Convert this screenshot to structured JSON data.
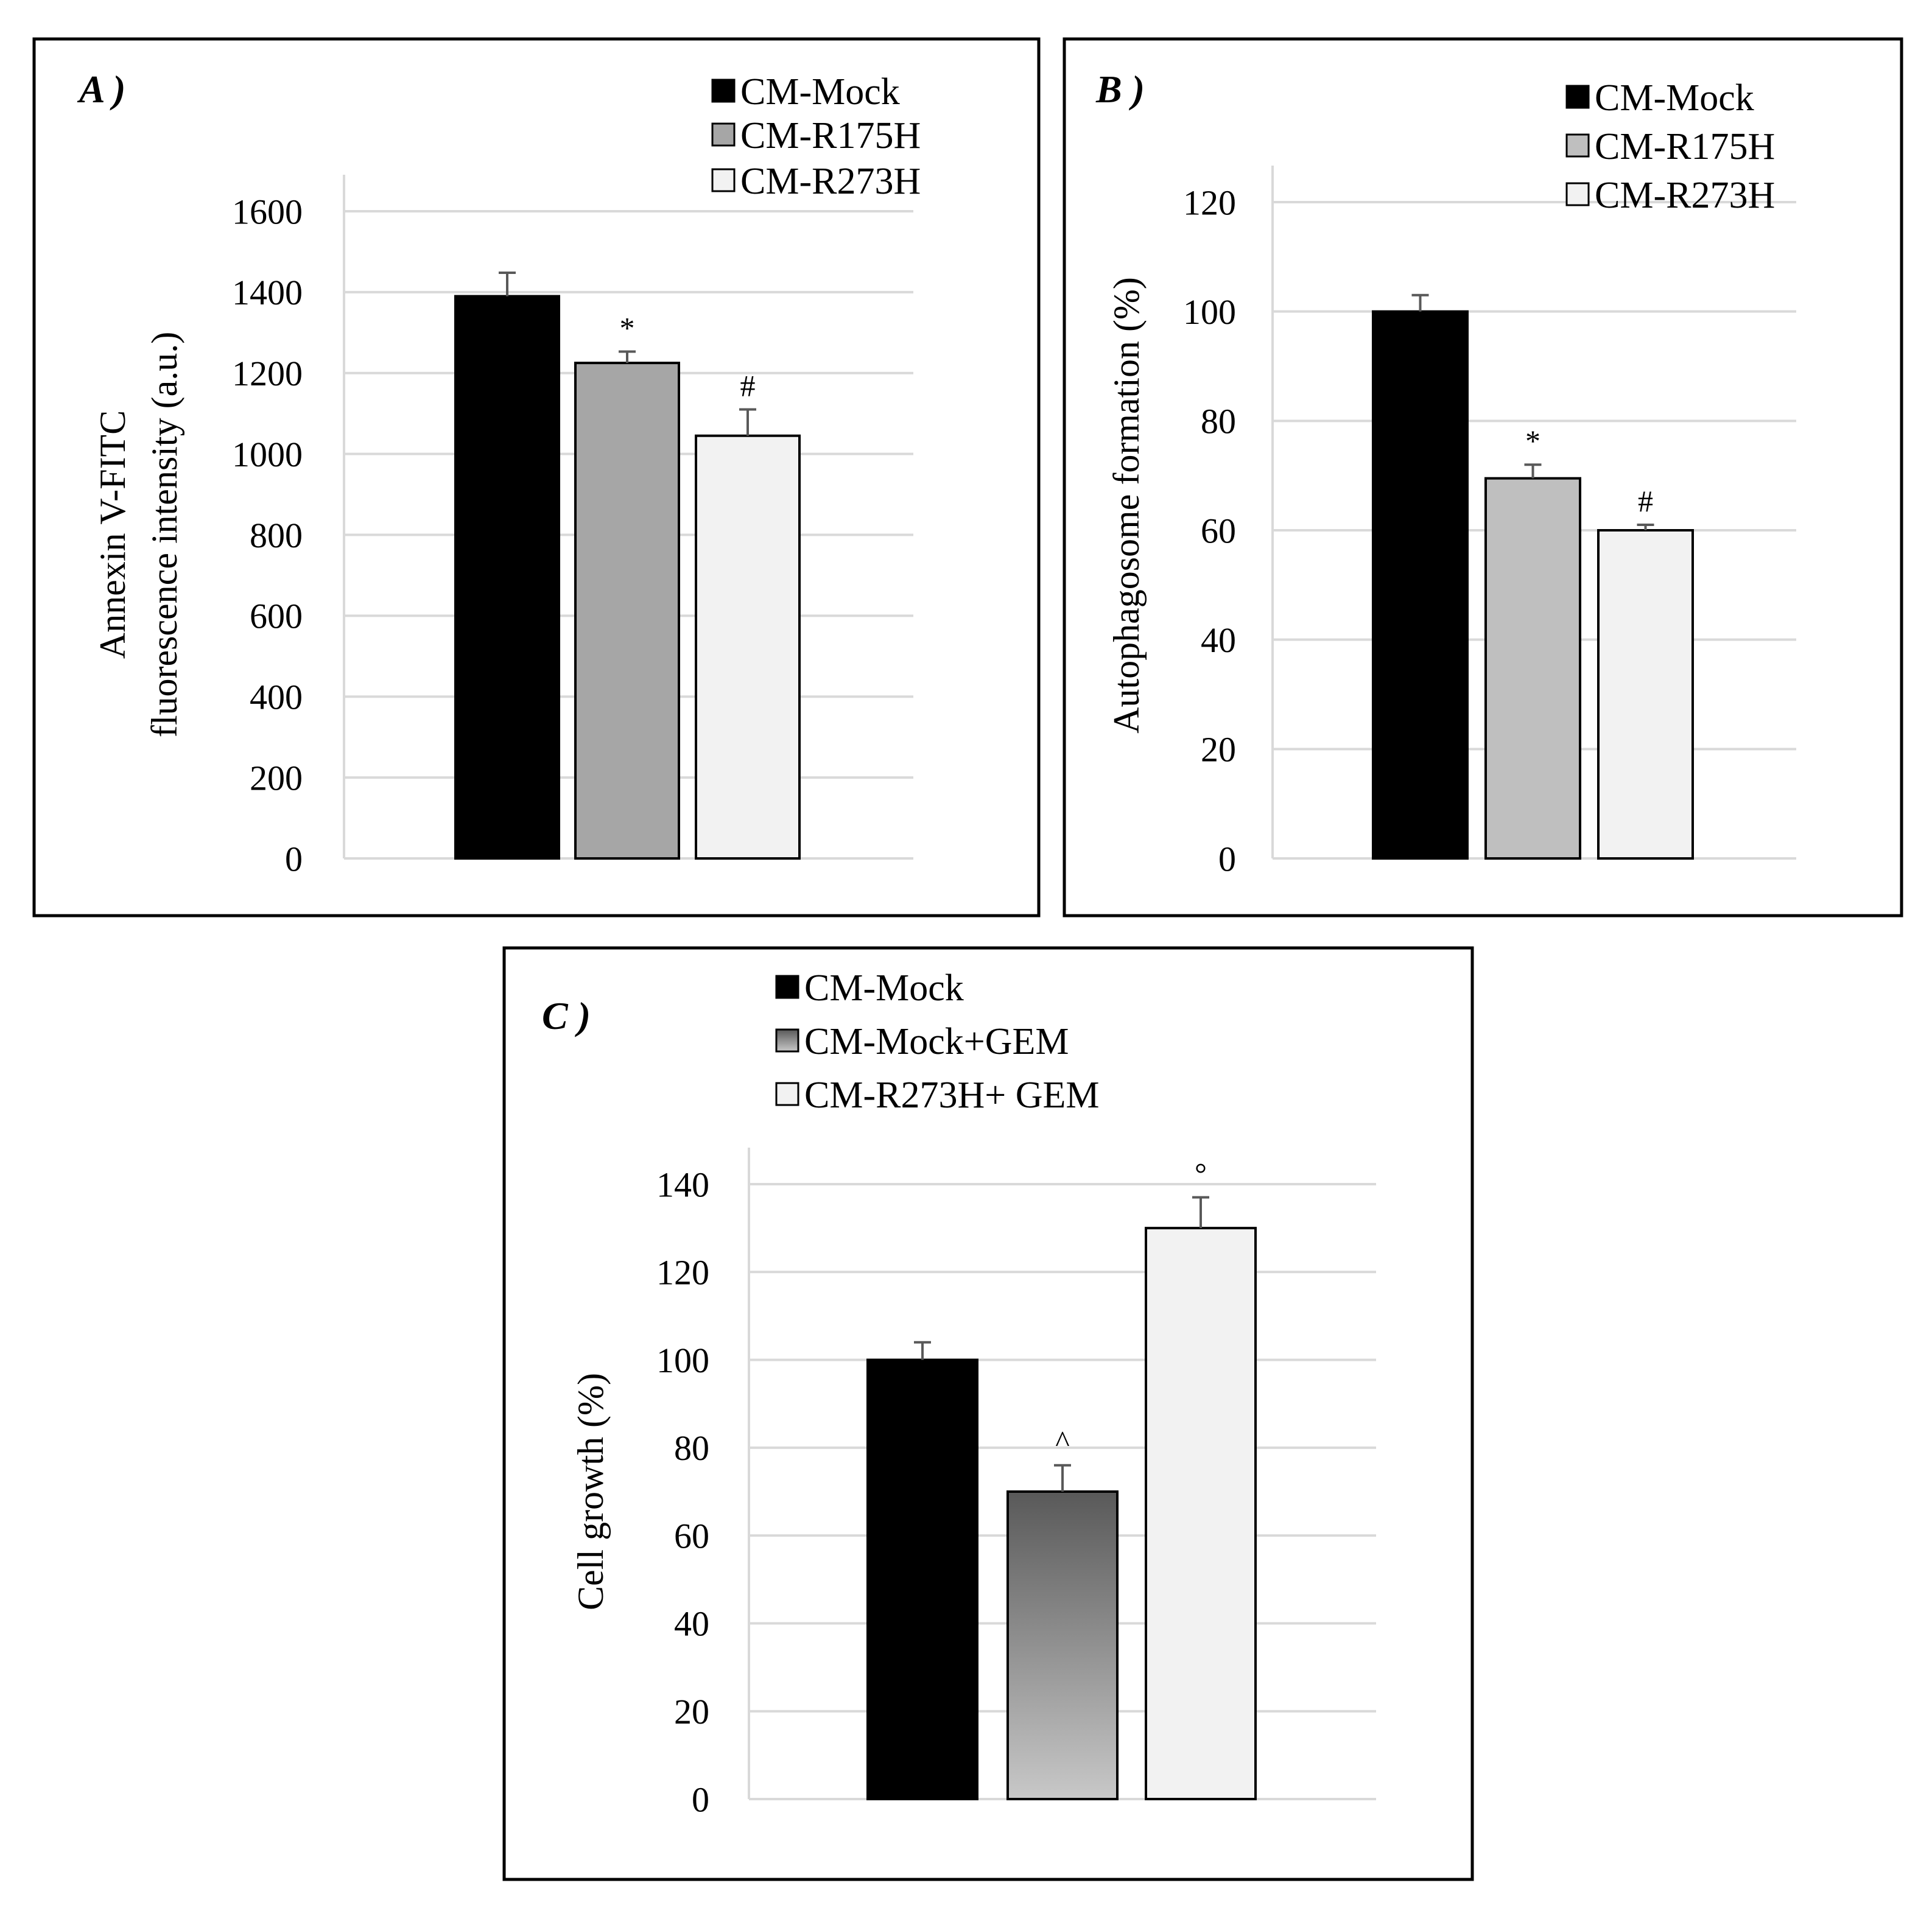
{
  "colors": {
    "black": "#000000",
    "gray": "#a6a6a6",
    "lightgray": "#bfbfbf",
    "white": "#f2f2f2",
    "gradient_top": "#595959",
    "gradient_bottom": "#c8c8c8",
    "grid": "#d9d9d9",
    "errorbar": "#595959"
  },
  "chart_data": [
    {
      "panel_label": "A )",
      "type": "bar",
      "categories": [
        "CM-Mock",
        "CM-R175H",
        "CM-R273H"
      ],
      "values": [
        1390,
        1225,
        1045
      ],
      "errors": [
        58,
        28,
        65
      ],
      "annotations": [
        "",
        "*",
        "#"
      ],
      "ylabel_lines": [
        "Annexin V-FITC",
        "fluorescence intensity (a.u.)"
      ],
      "ylim": [
        0,
        1600
      ],
      "yticks": [
        0,
        200,
        400,
        600,
        800,
        1000,
        1200,
        1400,
        1600
      ],
      "legend": [
        "CM-Mock",
        "CM-R175H",
        "CM-R273H"
      ],
      "bar_colors": [
        "black",
        "gray",
        "white"
      ]
    },
    {
      "panel_label": "B )",
      "type": "bar",
      "categories": [
        "CM-Mock",
        "CM-R175H",
        "CM-R273H"
      ],
      "values": [
        100,
        69.5,
        60
      ],
      "errors": [
        3,
        2.5,
        1
      ],
      "annotations": [
        "",
        "*",
        "#"
      ],
      "ylabel_lines": [
        "Autophagosome formation (%)"
      ],
      "ylim": [
        0,
        120
      ],
      "yticks": [
        0,
        20,
        40,
        60,
        80,
        100,
        120
      ],
      "legend": [
        "CM-Mock",
        "CM-R175H",
        "CM-R273H"
      ],
      "bar_colors": [
        "black",
        "lightgray",
        "white"
      ]
    },
    {
      "panel_label": "C )",
      "type": "bar",
      "categories": [
        "CM-Mock",
        "CM-Mock+GEM",
        "CM-R273H+ GEM"
      ],
      "values": [
        100,
        70,
        130
      ],
      "errors": [
        4,
        6,
        7
      ],
      "annotations": [
        "",
        "^",
        "°"
      ],
      "ylabel_lines": [
        "Cell growth (%)"
      ],
      "ylim": [
        0,
        140
      ],
      "yticks": [
        0,
        20,
        40,
        60,
        80,
        100,
        120,
        140
      ],
      "legend": [
        "CM-Mock",
        "CM-Mock+GEM",
        "CM-R273H+ GEM"
      ],
      "bar_colors": [
        "black",
        "gradient",
        "white"
      ]
    }
  ]
}
